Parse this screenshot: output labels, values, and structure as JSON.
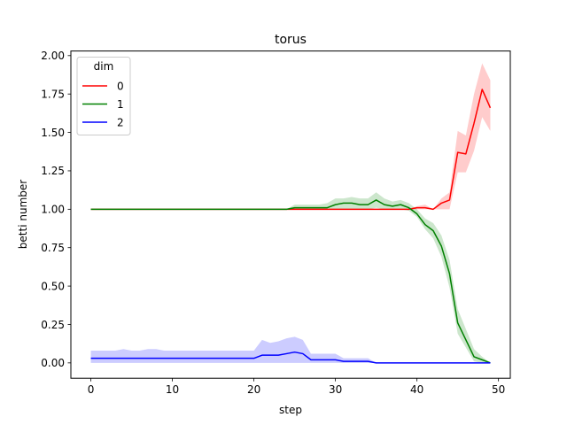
{
  "chart_data": {
    "type": "line",
    "title": "torus",
    "xlabel": "step",
    "ylabel": "betti number",
    "xlim": [
      -2.45,
      51.45
    ],
    "ylim": [
      -0.1,
      2.03
    ],
    "xticks": [
      "0",
      "10",
      "20",
      "30",
      "40",
      "50"
    ],
    "xtick_values": [
      0,
      10,
      20,
      30,
      40,
      50
    ],
    "yticks": [
      "0.00",
      "0.25",
      "0.50",
      "0.75",
      "1.00",
      "1.25",
      "1.50",
      "1.75",
      "2.00"
    ],
    "ytick_values": [
      0,
      0.25,
      0.5,
      0.75,
      1.0,
      1.25,
      1.5,
      1.75,
      2.0
    ],
    "grid": false,
    "legend": {
      "title": "dim",
      "placement": "top-left"
    },
    "x": [
      0,
      1,
      2,
      3,
      4,
      5,
      6,
      7,
      8,
      9,
      10,
      11,
      12,
      13,
      14,
      15,
      16,
      17,
      18,
      19,
      20,
      21,
      22,
      23,
      24,
      25,
      26,
      27,
      28,
      29,
      30,
      31,
      32,
      33,
      34,
      35,
      36,
      37,
      38,
      39,
      40,
      41,
      42,
      43,
      44,
      45,
      46,
      47,
      48,
      49
    ],
    "series": [
      {
        "name": "0",
        "color": "#ff0000",
        "values": [
          1,
          1,
          1,
          1,
          1,
          1,
          1,
          1,
          1,
          1,
          1,
          1,
          1,
          1,
          1,
          1,
          1,
          1,
          1,
          1,
          1,
          1,
          1,
          1,
          1,
          1,
          1,
          1,
          1,
          1,
          1,
          1,
          1,
          1,
          1,
          1,
          1,
          1,
          1,
          1,
          1.01,
          1.01,
          1.0,
          1.04,
          1.06,
          1.37,
          1.36,
          1.56,
          1.78,
          1.66
        ],
        "lower": [
          1,
          1,
          1,
          1,
          1,
          1,
          1,
          1,
          1,
          1,
          1,
          1,
          1,
          1,
          1,
          1,
          1,
          1,
          1,
          1,
          1,
          1,
          1,
          1,
          1,
          1,
          1,
          1,
          1,
          1,
          1,
          1,
          1,
          1,
          1,
          1,
          1,
          1,
          1,
          1,
          1.0,
          1.0,
          1.0,
          1.0,
          1.0,
          1.24,
          1.24,
          1.38,
          1.6,
          1.51
        ],
        "upper": [
          1,
          1,
          1,
          1,
          1,
          1,
          1,
          1,
          1,
          1,
          1,
          1,
          1,
          1,
          1,
          1,
          1,
          1,
          1,
          1,
          1,
          1,
          1,
          1,
          1,
          1,
          1,
          1,
          1,
          1,
          1,
          1,
          1,
          1,
          1,
          1,
          1,
          1,
          1,
          1,
          1.02,
          1.03,
          1.0,
          1.07,
          1.11,
          1.51,
          1.48,
          1.75,
          1.95,
          1.84
        ]
      },
      {
        "name": "1",
        "color": "#008000",
        "values": [
          1,
          1,
          1,
          1,
          1,
          1,
          1,
          1,
          1,
          1,
          1,
          1,
          1,
          1,
          1,
          1,
          1,
          1,
          1,
          1,
          1,
          1,
          1,
          1,
          1,
          1.01,
          1.01,
          1.01,
          1.01,
          1.01,
          1.03,
          1.04,
          1.04,
          1.03,
          1.03,
          1.06,
          1.03,
          1.02,
          1.03,
          1.01,
          0.97,
          0.9,
          0.86,
          0.76,
          0.58,
          0.26,
          0.15,
          0.04,
          0.02,
          0.0
        ],
        "lower": [
          1,
          1,
          1,
          1,
          1,
          1,
          1,
          1,
          1,
          1,
          1,
          1,
          1,
          1,
          1,
          1,
          1,
          1,
          1,
          1,
          1,
          1,
          1,
          1,
          1,
          1.0,
          1.0,
          1.0,
          1.0,
          1.0,
          1.0,
          1.0,
          1.0,
          1.0,
          1.0,
          1.01,
          1.0,
          1.0,
          1.0,
          0.99,
          0.95,
          0.87,
          0.81,
          0.69,
          0.49,
          0.19,
          0.1,
          0.01,
          0.0,
          0.0
        ],
        "upper": [
          1,
          1,
          1,
          1,
          1,
          1,
          1,
          1,
          1,
          1,
          1,
          1,
          1,
          1,
          1,
          1,
          1,
          1,
          1,
          1,
          1,
          1,
          1,
          1,
          1,
          1.03,
          1.03,
          1.03,
          1.03,
          1.04,
          1.07,
          1.07,
          1.08,
          1.07,
          1.07,
          1.11,
          1.07,
          1.05,
          1.06,
          1.04,
          1.0,
          0.94,
          0.91,
          0.83,
          0.67,
          0.35,
          0.22,
          0.09,
          0.04,
          0.0
        ]
      },
      {
        "name": "2",
        "color": "#0000ff",
        "values": [
          0.03,
          0.03,
          0.03,
          0.03,
          0.03,
          0.03,
          0.03,
          0.03,
          0.03,
          0.03,
          0.03,
          0.03,
          0.03,
          0.03,
          0.03,
          0.03,
          0.03,
          0.03,
          0.03,
          0.03,
          0.03,
          0.05,
          0.05,
          0.05,
          0.06,
          0.07,
          0.06,
          0.02,
          0.02,
          0.02,
          0.02,
          0.01,
          0.01,
          0.01,
          0.01,
          0.0,
          0.0,
          0.0,
          0.0,
          0.0,
          0.0,
          0.0,
          0.0,
          0.0,
          0.0,
          0.0,
          0.0,
          0.0,
          0.0,
          0.0
        ],
        "lower": [
          0,
          0,
          0,
          0,
          0,
          0,
          0,
          0,
          0,
          0,
          0,
          0,
          0,
          0,
          0,
          0,
          0,
          0,
          0,
          0,
          0,
          0,
          0,
          0,
          0,
          0,
          0,
          0,
          0,
          0,
          0,
          0,
          0,
          0,
          0,
          0,
          0,
          0,
          0,
          0,
          0,
          0,
          0,
          0,
          0,
          0,
          0,
          0,
          0,
          0
        ],
        "upper": [
          0.08,
          0.08,
          0.08,
          0.08,
          0.09,
          0.08,
          0.08,
          0.09,
          0.09,
          0.08,
          0.08,
          0.08,
          0.08,
          0.08,
          0.08,
          0.08,
          0.08,
          0.08,
          0.08,
          0.08,
          0.08,
          0.15,
          0.13,
          0.14,
          0.16,
          0.17,
          0.15,
          0.06,
          0.06,
          0.06,
          0.06,
          0.03,
          0.03,
          0.03,
          0.03,
          0.0,
          0.0,
          0.0,
          0.0,
          0.0,
          0.0,
          0.0,
          0.0,
          0.0,
          0.0,
          0.0,
          0.0,
          0.0,
          0.0,
          0.0
        ]
      }
    ]
  }
}
